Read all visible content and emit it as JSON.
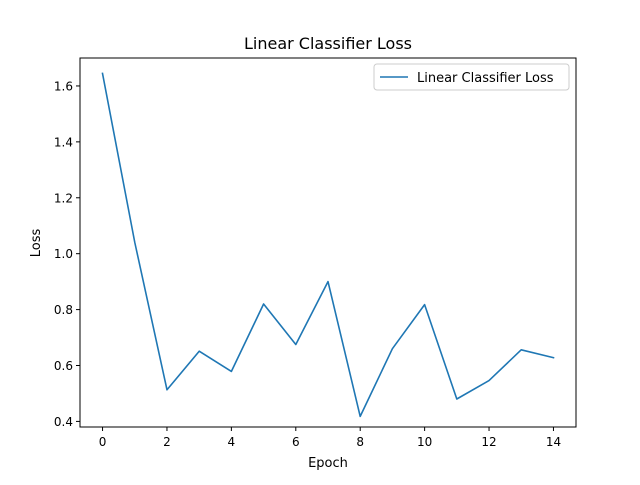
{
  "chart_data": {
    "type": "line",
    "title": "Linear Classifier Loss",
    "xlabel": "Epoch",
    "ylabel": "Loss",
    "xlim": [
      -0.7,
      14.7
    ],
    "ylim": [
      0.38,
      1.7
    ],
    "xticks": [
      0,
      2,
      4,
      6,
      8,
      10,
      12,
      14
    ],
    "yticks": [
      0.4,
      0.6,
      0.8,
      1.0,
      1.2,
      1.4,
      1.6
    ],
    "ytick_labels": [
      "0.4",
      "0.6",
      "0.8",
      "1.0",
      "1.2",
      "1.4",
      "1.6"
    ],
    "grid": false,
    "legend_position": "top-right",
    "series": [
      {
        "name": "Linear Classifier Loss",
        "color": "#1f77b4",
        "x": [
          0,
          1,
          2,
          3,
          4,
          5,
          6,
          7,
          8,
          9,
          10,
          11,
          12,
          13,
          14
        ],
        "y": [
          1.645,
          1.04,
          0.513,
          0.651,
          0.579,
          0.82,
          0.675,
          0.9,
          0.418,
          0.66,
          0.818,
          0.48,
          0.546,
          0.656,
          0.628
        ]
      }
    ]
  }
}
